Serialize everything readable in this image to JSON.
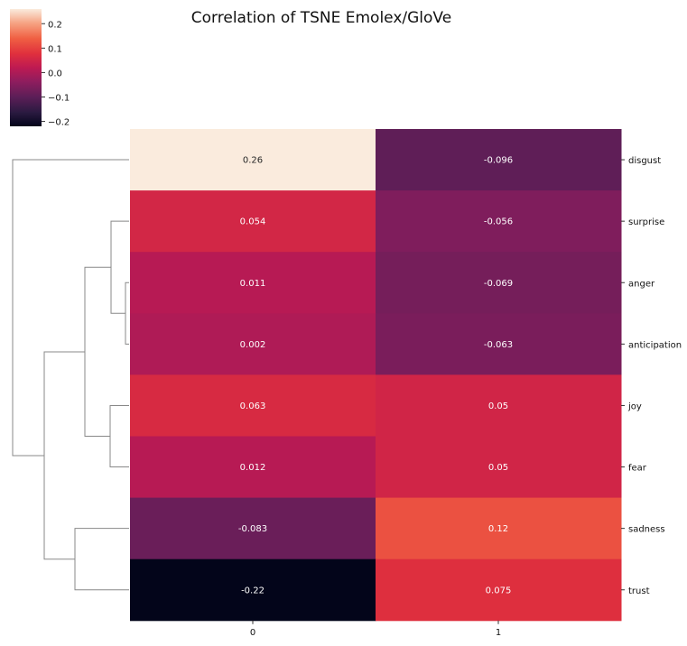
{
  "chart_data": {
    "type": "heatmap",
    "title": "Correlation of TSNE Emolex/GloVe",
    "columns": [
      "0",
      "1"
    ],
    "rows": [
      "disgust",
      "surprise",
      "anger",
      "anticipation",
      "joy",
      "fear",
      "sadness",
      "trust"
    ],
    "values": [
      [
        0.26,
        -0.096
      ],
      [
        0.054,
        -0.056
      ],
      [
        0.011,
        -0.069
      ],
      [
        0.002,
        -0.063
      ],
      [
        0.063,
        0.05
      ],
      [
        0.012,
        0.05
      ],
      [
        -0.083,
        0.12
      ],
      [
        -0.22,
        0.075
      ]
    ],
    "cell_labels": [
      [
        "0.26",
        "-0.096"
      ],
      [
        "0.054",
        "-0.056"
      ],
      [
        "0.011",
        "-0.069"
      ],
      [
        "0.002",
        "-0.063"
      ],
      [
        "0.063",
        "0.05"
      ],
      [
        "0.012",
        "0.05"
      ],
      [
        "-0.083",
        "0.12"
      ],
      [
        "-0.22",
        "0.075"
      ]
    ],
    "colorbar": {
      "ticks": [
        0.2,
        0.1,
        0.0,
        -0.1,
        -0.2
      ],
      "tick_labels": [
        "0.2",
        "0.1",
        "0.0",
        "−0.1",
        "−0.2"
      ],
      "range": [
        -0.22,
        0.26
      ],
      "colormap": "rocket"
    },
    "dendrogram": {
      "orientation": "left",
      "line_color": "#888888",
      "merges": [
        {
          "left": "anger",
          "right": "anticipation"
        },
        {
          "left": "surprise",
          "right": "anger+anticipation"
        },
        {
          "left": "joy",
          "right": "fear"
        },
        {
          "left": "surprise+anger+anticipation",
          "right": "joy+fear"
        },
        {
          "left": "sadness",
          "right": "trust"
        },
        {
          "left": "surprise+anger+anticipation+joy+fear",
          "right": "sadness+trust"
        },
        {
          "left": "disgust",
          "right": "rest"
        }
      ]
    }
  }
}
